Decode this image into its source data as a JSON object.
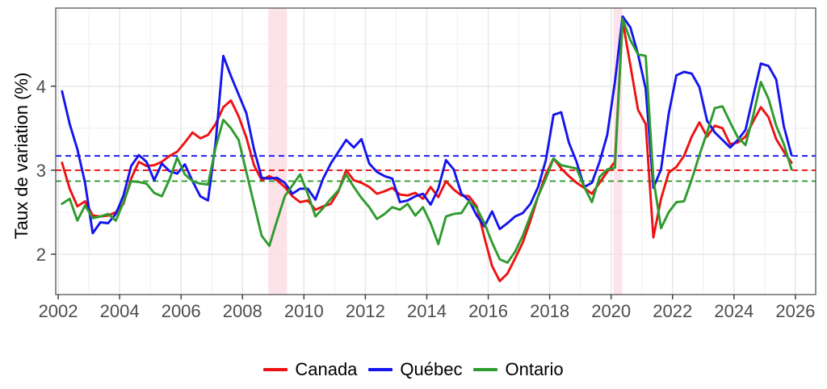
{
  "chart_data": {
    "type": "line",
    "title": "",
    "ylabel": "Taux de variation (%)",
    "legend_position": "bottom",
    "grid": true,
    "x_range": [
      2001.92,
      2026.66
    ],
    "y_range": [
      1.52,
      4.93
    ],
    "x_ticks": [
      2002,
      2004,
      2006,
      2008,
      2010,
      2012,
      2014,
      2016,
      2018,
      2020,
      2022,
      2024,
      2026
    ],
    "x_minor_ticks": [
      2003,
      2005,
      2007,
      2009,
      2011,
      2013,
      2015,
      2017,
      2019,
      2021,
      2023,
      2025
    ],
    "y_ticks": [
      2,
      3,
      4
    ],
    "y_minor_ticks": [
      2.5,
      3.5,
      4.5
    ],
    "x_start": 2002.125,
    "x_step": 0.25,
    "frequency": "quarterly",
    "shaded_bands": [
      {
        "name": "recession-2008-2009",
        "from": 2008.84,
        "to": 2009.45,
        "color": "#fbdde5"
      },
      {
        "name": "recession-2020",
        "from": 2020.08,
        "to": 2020.36,
        "color": "#fbdde5"
      }
    ],
    "mean_lines": [
      {
        "series": "Canada",
        "value": 3.0,
        "color": "#ee1111"
      },
      {
        "series": "Québec",
        "value": 3.17,
        "color": "#1414ee"
      },
      {
        "series": "Ontario",
        "value": 2.87,
        "color": "#2e9b2e"
      }
    ],
    "series": [
      {
        "name": "Canada",
        "color": "#ee1111",
        "values": [
          3.09,
          2.78,
          2.57,
          2.63,
          2.46,
          2.45,
          2.46,
          2.5,
          2.6,
          2.9,
          3.1,
          3.05,
          3.06,
          3.1,
          3.17,
          3.22,
          3.33,
          3.45,
          3.38,
          3.42,
          3.55,
          3.75,
          3.83,
          3.64,
          3.39,
          3.06,
          2.88,
          2.93,
          2.88,
          2.8,
          2.69,
          2.62,
          2.64,
          2.53,
          2.57,
          2.6,
          2.75,
          3.0,
          2.88,
          2.85,
          2.8,
          2.72,
          2.75,
          2.79,
          2.71,
          2.7,
          2.73,
          2.66,
          2.8,
          2.68,
          2.87,
          2.77,
          2.7,
          2.69,
          2.57,
          2.2,
          1.86,
          1.68,
          1.77,
          1.95,
          2.14,
          2.4,
          2.69,
          2.95,
          3.14,
          3.02,
          2.93,
          2.85,
          2.79,
          2.72,
          2.85,
          2.98,
          3.1,
          4.78,
          4.25,
          3.72,
          3.55,
          2.2,
          2.66,
          2.97,
          3.04,
          3.17,
          3.4,
          3.57,
          3.4,
          3.53,
          3.5,
          3.31,
          3.33,
          3.4,
          3.58,
          3.75,
          3.63,
          3.37,
          3.22,
          3.09
        ]
      },
      {
        "name": "Québec",
        "color": "#1414ee",
        "values": [
          3.94,
          3.55,
          3.25,
          2.85,
          2.25,
          2.38,
          2.37,
          2.48,
          2.7,
          3.05,
          3.18,
          3.1,
          2.88,
          3.08,
          2.99,
          2.96,
          3.07,
          2.87,
          2.69,
          2.64,
          3.33,
          4.36,
          4.12,
          3.9,
          3.68,
          3.25,
          2.91,
          2.9,
          2.91,
          2.85,
          2.72,
          2.78,
          2.78,
          2.65,
          2.9,
          3.08,
          3.22,
          3.36,
          3.27,
          3.37,
          3.08,
          2.98,
          2.93,
          2.9,
          2.62,
          2.64,
          2.69,
          2.72,
          2.59,
          2.78,
          3.12,
          3.01,
          2.72,
          2.64,
          2.46,
          2.33,
          2.51,
          2.3,
          2.37,
          2.45,
          2.49,
          2.6,
          2.8,
          3.12,
          3.66,
          3.69,
          3.33,
          3.1,
          2.8,
          2.85,
          3.1,
          3.42,
          4.05,
          4.83,
          4.7,
          4.38,
          3.97,
          2.79,
          3.01,
          3.67,
          4.13,
          4.17,
          4.15,
          3.99,
          3.59,
          3.45,
          3.36,
          3.27,
          3.36,
          3.48,
          3.88,
          4.27,
          4.24,
          4.08,
          3.52,
          3.18
        ]
      },
      {
        "name": "Ontario",
        "color": "#2e9b2e",
        "values": [
          2.6,
          2.66,
          2.4,
          2.58,
          2.43,
          2.45,
          2.48,
          2.4,
          2.62,
          2.87,
          2.86,
          2.84,
          2.73,
          2.69,
          2.89,
          3.15,
          2.95,
          2.87,
          2.84,
          2.83,
          3.27,
          3.6,
          3.5,
          3.36,
          2.98,
          2.6,
          2.22,
          2.1,
          2.4,
          2.69,
          2.82,
          2.95,
          2.72,
          2.45,
          2.55,
          2.66,
          2.76,
          2.95,
          2.8,
          2.67,
          2.56,
          2.42,
          2.48,
          2.56,
          2.53,
          2.6,
          2.46,
          2.56,
          2.37,
          2.12,
          2.45,
          2.48,
          2.49,
          2.63,
          2.55,
          2.37,
          2.14,
          1.94,
          1.9,
          2.03,
          2.22,
          2.46,
          2.69,
          2.9,
          3.14,
          3.06,
          3.04,
          3.02,
          2.8,
          2.62,
          2.92,
          3.01,
          3.03,
          4.8,
          4.55,
          4.38,
          4.36,
          2.9,
          2.31,
          2.5,
          2.62,
          2.63,
          2.89,
          3.18,
          3.45,
          3.74,
          3.76,
          3.57,
          3.39,
          3.3,
          3.65,
          4.05,
          3.85,
          3.53,
          3.31,
          3.01
        ]
      }
    ]
  },
  "style": {
    "tick_label_color": "#4d4d4d",
    "grid_major_color": "#e6e6e6",
    "grid_minor_color": "#f2f2f2",
    "panel_border_color": "#555555",
    "background": "#ffffff"
  }
}
